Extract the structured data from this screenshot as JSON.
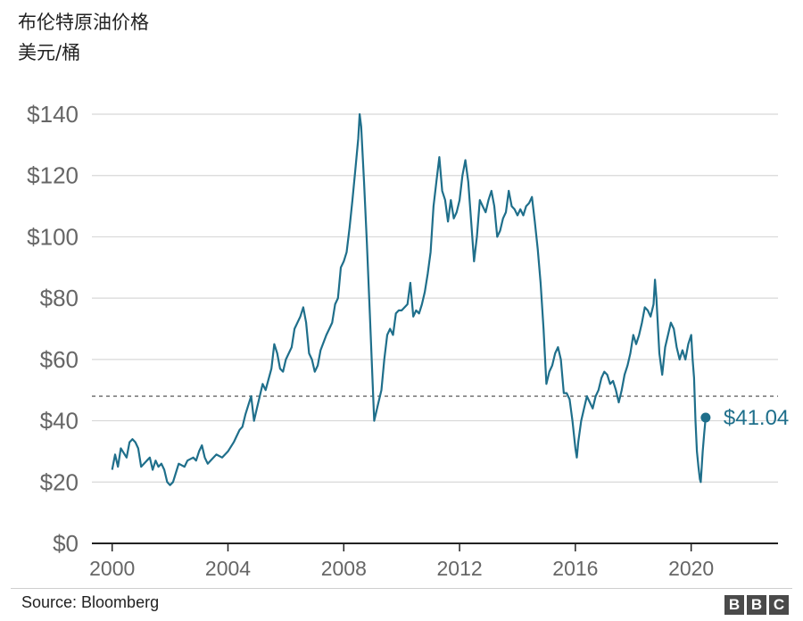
{
  "title": "布伦特原油价格",
  "subtitle": "美元/桶",
  "source": "Source: Bloomberg",
  "logo": {
    "letters": [
      "B",
      "B",
      "C"
    ],
    "color": "#4a4a4a"
  },
  "colors": {
    "line": "#1f6f8b",
    "grid": "#d8d8d8",
    "axis": "#222222",
    "reference": "#666666"
  },
  "chart_data": {
    "type": "line",
    "title": "布伦特原油价格",
    "ylabel": "美元/桶",
    "xlabel": "",
    "xlim": [
      1999.3,
      2023.0
    ],
    "ylim": [
      0,
      140
    ],
    "x_ticks": [
      2000,
      2004,
      2008,
      2012,
      2016,
      2020
    ],
    "x_tick_labels": [
      "2000",
      "2004",
      "2008",
      "2012",
      "2016",
      "2020"
    ],
    "y_ticks": [
      0,
      20,
      40,
      60,
      80,
      100,
      120,
      140
    ],
    "y_tick_labels": [
      "$0",
      "$20",
      "$40",
      "$60",
      "$80",
      "$100",
      "$120",
      "$140"
    ],
    "grid": true,
    "reference_line": {
      "y": 48,
      "style": "dashed"
    },
    "end_point": {
      "x": 2020.5,
      "y": 41.04,
      "label": "$41.04"
    },
    "series": [
      {
        "values": [
          [
            2000.0,
            24
          ],
          [
            2000.1,
            29
          ],
          [
            2000.2,
            25
          ],
          [
            2000.3,
            31
          ],
          [
            2000.5,
            28
          ],
          [
            2000.6,
            33
          ],
          [
            2000.7,
            34
          ],
          [
            2000.8,
            33
          ],
          [
            2000.9,
            31
          ],
          [
            2001.0,
            25
          ],
          [
            2001.2,
            27
          ],
          [
            2001.3,
            28
          ],
          [
            2001.4,
            24
          ],
          [
            2001.5,
            27
          ],
          [
            2001.6,
            25
          ],
          [
            2001.7,
            26
          ],
          [
            2001.8,
            24
          ],
          [
            2001.9,
            20
          ],
          [
            2002.0,
            19
          ],
          [
            2002.1,
            20
          ],
          [
            2002.2,
            23
          ],
          [
            2002.3,
            26
          ],
          [
            2002.5,
            25
          ],
          [
            2002.6,
            27
          ],
          [
            2002.8,
            28
          ],
          [
            2002.9,
            27
          ],
          [
            2003.0,
            30
          ],
          [
            2003.1,
            32
          ],
          [
            2003.2,
            28
          ],
          [
            2003.3,
            26
          ],
          [
            2003.5,
            28
          ],
          [
            2003.6,
            29
          ],
          [
            2003.8,
            28
          ],
          [
            2004.0,
            30
          ],
          [
            2004.2,
            33
          ],
          [
            2004.4,
            37
          ],
          [
            2004.5,
            38
          ],
          [
            2004.6,
            42
          ],
          [
            2004.7,
            45
          ],
          [
            2004.8,
            48
          ],
          [
            2004.9,
            40
          ],
          [
            2005.0,
            44
          ],
          [
            2005.2,
            52
          ],
          [
            2005.3,
            50
          ],
          [
            2005.5,
            57
          ],
          [
            2005.6,
            65
          ],
          [
            2005.7,
            62
          ],
          [
            2005.8,
            57
          ],
          [
            2005.9,
            56
          ],
          [
            2006.0,
            60
          ],
          [
            2006.2,
            64
          ],
          [
            2006.3,
            70
          ],
          [
            2006.5,
            74
          ],
          [
            2006.6,
            77
          ],
          [
            2006.7,
            72
          ],
          [
            2006.8,
            62
          ],
          [
            2006.9,
            60
          ],
          [
            2007.0,
            56
          ],
          [
            2007.1,
            58
          ],
          [
            2007.2,
            63
          ],
          [
            2007.4,
            68
          ],
          [
            2007.5,
            70
          ],
          [
            2007.6,
            72
          ],
          [
            2007.7,
            78
          ],
          [
            2007.8,
            80
          ],
          [
            2007.9,
            90
          ],
          [
            2008.0,
            92
          ],
          [
            2008.1,
            95
          ],
          [
            2008.2,
            103
          ],
          [
            2008.3,
            112
          ],
          [
            2008.4,
            122
          ],
          [
            2008.5,
            132
          ],
          [
            2008.55,
            140
          ],
          [
            2008.6,
            136
          ],
          [
            2008.7,
            118
          ],
          [
            2008.8,
            98
          ],
          [
            2008.9,
            75
          ],
          [
            2009.0,
            52
          ],
          [
            2009.05,
            40
          ],
          [
            2009.1,
            42
          ],
          [
            2009.2,
            46
          ],
          [
            2009.3,
            50
          ],
          [
            2009.4,
            60
          ],
          [
            2009.5,
            68
          ],
          [
            2009.6,
            70
          ],
          [
            2009.7,
            68
          ],
          [
            2009.8,
            75
          ],
          [
            2009.9,
            76
          ],
          [
            2010.0,
            76
          ],
          [
            2010.2,
            78
          ],
          [
            2010.3,
            85
          ],
          [
            2010.4,
            74
          ],
          [
            2010.5,
            76
          ],
          [
            2010.6,
            75
          ],
          [
            2010.7,
            78
          ],
          [
            2010.8,
            82
          ],
          [
            2010.9,
            88
          ],
          [
            2011.0,
            95
          ],
          [
            2011.1,
            110
          ],
          [
            2011.2,
            118
          ],
          [
            2011.3,
            126
          ],
          [
            2011.4,
            115
          ],
          [
            2011.5,
            112
          ],
          [
            2011.6,
            105
          ],
          [
            2011.7,
            112
          ],
          [
            2011.8,
            106
          ],
          [
            2011.9,
            108
          ],
          [
            2012.0,
            112
          ],
          [
            2012.1,
            120
          ],
          [
            2012.2,
            125
          ],
          [
            2012.3,
            118
          ],
          [
            2012.4,
            105
          ],
          [
            2012.5,
            92
          ],
          [
            2012.6,
            100
          ],
          [
            2012.7,
            112
          ],
          [
            2012.8,
            110
          ],
          [
            2012.9,
            108
          ],
          [
            2013.0,
            112
          ],
          [
            2013.1,
            115
          ],
          [
            2013.2,
            110
          ],
          [
            2013.3,
            100
          ],
          [
            2013.4,
            102
          ],
          [
            2013.5,
            106
          ],
          [
            2013.6,
            108
          ],
          [
            2013.7,
            115
          ],
          [
            2013.8,
            110
          ],
          [
            2013.9,
            109
          ],
          [
            2014.0,
            107
          ],
          [
            2014.1,
            109
          ],
          [
            2014.2,
            107
          ],
          [
            2014.3,
            110
          ],
          [
            2014.4,
            111
          ],
          [
            2014.5,
            113
          ],
          [
            2014.6,
            105
          ],
          [
            2014.7,
            96
          ],
          [
            2014.8,
            85
          ],
          [
            2014.9,
            70
          ],
          [
            2015.0,
            52
          ],
          [
            2015.1,
            56
          ],
          [
            2015.2,
            58
          ],
          [
            2015.3,
            62
          ],
          [
            2015.4,
            64
          ],
          [
            2015.5,
            60
          ],
          [
            2015.6,
            49
          ],
          [
            2015.7,
            49
          ],
          [
            2015.8,
            47
          ],
          [
            2015.9,
            40
          ],
          [
            2016.0,
            31
          ],
          [
            2016.05,
            28
          ],
          [
            2016.1,
            33
          ],
          [
            2016.2,
            40
          ],
          [
            2016.3,
            44
          ],
          [
            2016.4,
            48
          ],
          [
            2016.5,
            46
          ],
          [
            2016.6,
            44
          ],
          [
            2016.7,
            48
          ],
          [
            2016.8,
            50
          ],
          [
            2016.9,
            54
          ],
          [
            2017.0,
            56
          ],
          [
            2017.1,
            55
          ],
          [
            2017.2,
            52
          ],
          [
            2017.3,
            53
          ],
          [
            2017.4,
            50
          ],
          [
            2017.5,
            46
          ],
          [
            2017.6,
            50
          ],
          [
            2017.7,
            55
          ],
          [
            2017.8,
            58
          ],
          [
            2017.9,
            62
          ],
          [
            2018.0,
            68
          ],
          [
            2018.1,
            65
          ],
          [
            2018.2,
            68
          ],
          [
            2018.3,
            72
          ],
          [
            2018.4,
            77
          ],
          [
            2018.5,
            76
          ],
          [
            2018.6,
            74
          ],
          [
            2018.7,
            78
          ],
          [
            2018.75,
            86
          ],
          [
            2018.8,
            80
          ],
          [
            2018.9,
            62
          ],
          [
            2019.0,
            55
          ],
          [
            2019.1,
            64
          ],
          [
            2019.2,
            68
          ],
          [
            2019.3,
            72
          ],
          [
            2019.4,
            70
          ],
          [
            2019.5,
            64
          ],
          [
            2019.6,
            60
          ],
          [
            2019.7,
            63
          ],
          [
            2019.8,
            60
          ],
          [
            2019.9,
            65
          ],
          [
            2020.0,
            68
          ],
          [
            2020.05,
            60
          ],
          [
            2020.1,
            54
          ],
          [
            2020.15,
            40
          ],
          [
            2020.2,
            30
          ],
          [
            2020.25,
            25
          ],
          [
            2020.3,
            21
          ],
          [
            2020.33,
            20
          ],
          [
            2020.4,
            30
          ],
          [
            2020.45,
            36
          ],
          [
            2020.5,
            41.04
          ]
        ]
      }
    ]
  }
}
